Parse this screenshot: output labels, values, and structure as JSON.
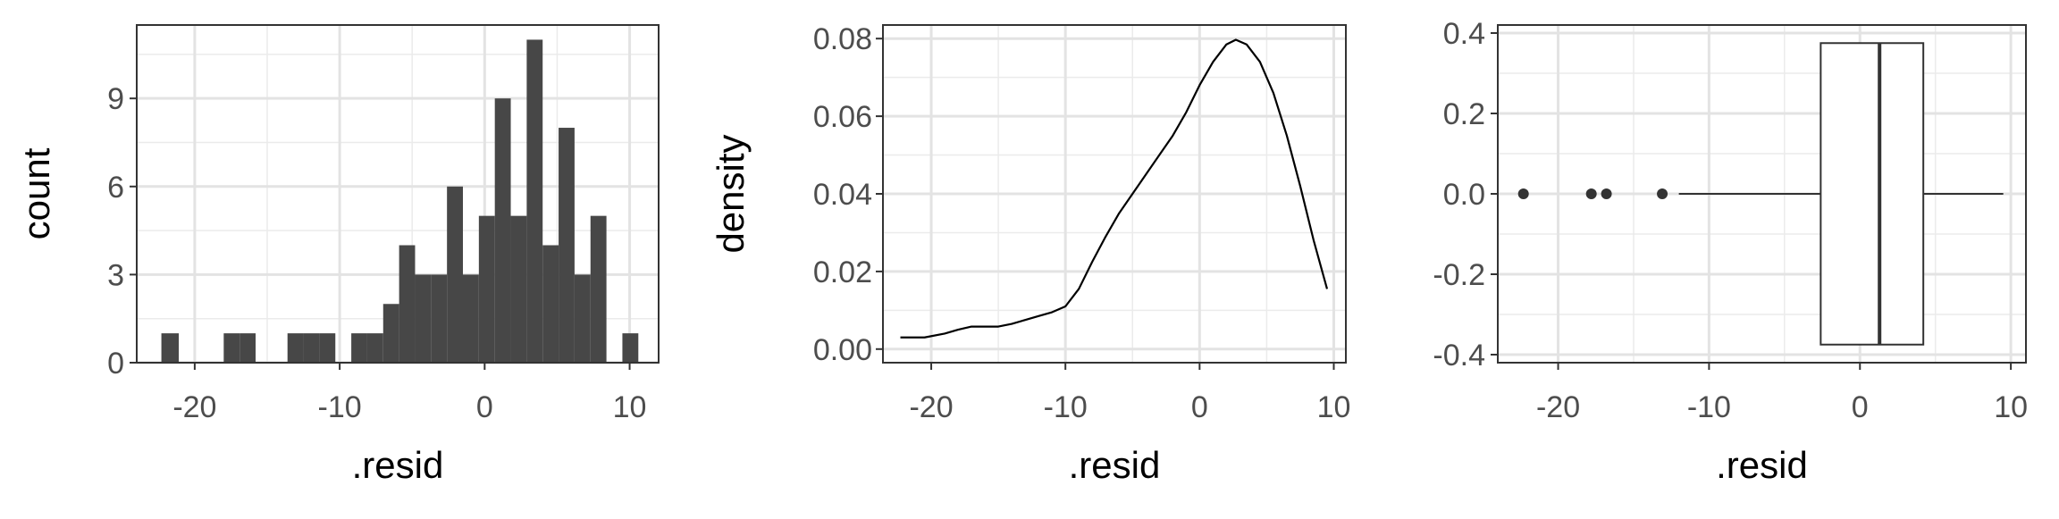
{
  "chart_data": [
    {
      "type": "histogram",
      "xlabel": ".resid",
      "ylabel": "count",
      "xlim": [
        -24,
        12
      ],
      "ylim": [
        0,
        11.5
      ],
      "x_ticks": [
        -20,
        -10,
        0,
        10
      ],
      "x_tick_labels": [
        "-20",
        "-10",
        "0",
        "10"
      ],
      "y_ticks": [
        0,
        3,
        6,
        9
      ],
      "y_tick_labels": [
        "0",
        "3",
        "6",
        "9"
      ],
      "grid": true,
      "bar_color": "#474747",
      "bins": [
        {
          "x0": -22.3,
          "x1": -21.1,
          "count": 1
        },
        {
          "x0": -18.0,
          "x1": -16.9,
          "count": 1
        },
        {
          "x0": -16.9,
          "x1": -15.8,
          "count": 1
        },
        {
          "x0": -13.6,
          "x1": -12.5,
          "count": 1
        },
        {
          "x0": -12.5,
          "x1": -11.4,
          "count": 1
        },
        {
          "x0": -11.4,
          "x1": -10.3,
          "count": 1
        },
        {
          "x0": -9.2,
          "x1": -8.1,
          "count": 1
        },
        {
          "x0": -8.1,
          "x1": -7.0,
          "count": 1
        },
        {
          "x0": -7.0,
          "x1": -5.9,
          "count": 2
        },
        {
          "x0": -5.9,
          "x1": -4.8,
          "count": 4
        },
        {
          "x0": -4.8,
          "x1": -3.7,
          "count": 3
        },
        {
          "x0": -3.7,
          "x1": -2.6,
          "count": 3
        },
        {
          "x0": -2.6,
          "x1": -1.5,
          "count": 6
        },
        {
          "x0": -1.5,
          "x1": -0.4,
          "count": 3
        },
        {
          "x0": -0.4,
          "x1": 0.7,
          "count": 5
        },
        {
          "x0": 0.7,
          "x1": 1.8,
          "count": 9
        },
        {
          "x0": 1.8,
          "x1": 2.9,
          "count": 5
        },
        {
          "x0": 2.9,
          "x1": 4.0,
          "count": 11
        },
        {
          "x0": 4.0,
          "x1": 5.1,
          "count": 4
        },
        {
          "x0": 5.1,
          "x1": 6.2,
          "count": 8
        },
        {
          "x0": 6.2,
          "x1": 7.3,
          "count": 3
        },
        {
          "x0": 7.3,
          "x1": 8.4,
          "count": 5
        },
        {
          "x0": 9.5,
          "x1": 10.6,
          "count": 1
        }
      ]
    },
    {
      "type": "line",
      "subtype": "density",
      "xlabel": ".resid",
      "ylabel": "density",
      "xlim": [
        -23.6,
        10.9
      ],
      "ylim": [
        -0.0035,
        0.0835
      ],
      "x_ticks": [
        -20,
        -10,
        0,
        10
      ],
      "x_tick_labels": [
        "-20",
        "-10",
        "0",
        "10"
      ],
      "y_ticks": [
        0,
        0.02,
        0.04,
        0.06,
        0.08
      ],
      "y_tick_labels": [
        "0.00",
        "0.02",
        "0.04",
        "0.06",
        "0.08"
      ],
      "grid": true,
      "line_color": "#000000",
      "x": [
        -22.3,
        -20.5,
        -19.0,
        -18.0,
        -17.0,
        -16.0,
        -15.0,
        -14.0,
        -13.0,
        -12.0,
        -11.0,
        -10.0,
        -9.0,
        -8.0,
        -7.0,
        -6.0,
        -5.0,
        -4.0,
        -3.0,
        -2.0,
        -1.0,
        0.0,
        1.0,
        2.0,
        2.7,
        3.5,
        4.5,
        5.5,
        6.5,
        7.5,
        8.5,
        9.5
      ],
      "y": [
        0.003,
        0.003,
        0.004,
        0.005,
        0.0058,
        0.0058,
        0.0058,
        0.0065,
        0.0075,
        0.0085,
        0.0095,
        0.011,
        0.0155,
        0.0225,
        0.029,
        0.035,
        0.04,
        0.045,
        0.05,
        0.055,
        0.061,
        0.068,
        0.074,
        0.0785,
        0.0797,
        0.0785,
        0.074,
        0.066,
        0.055,
        0.042,
        0.028,
        0.0155
      ]
    },
    {
      "type": "boxplot",
      "xlabel": ".resid",
      "ylabel": "",
      "xlim": [
        -24,
        11
      ],
      "ylim": [
        -0.42,
        0.42
      ],
      "x_ticks": [
        -20,
        -10,
        0,
        10
      ],
      "x_tick_labels": [
        "-20",
        "-10",
        "0",
        "10"
      ],
      "y_ticks": [
        -0.4,
        -0.2,
        0,
        0.2,
        0.4
      ],
      "y_tick_labels": [
        "-0.4",
        "-0.2",
        "0.0",
        "0.2",
        "0.4"
      ],
      "grid": true,
      "box": {
        "q1": -2.6,
        "median": 1.3,
        "q3": 4.2,
        "whisker_low": -12.0,
        "whisker_high": 9.5,
        "half_width": 0.375
      },
      "outliers": [
        -22.3,
        -17.8,
        -16.8,
        -13.1
      ]
    }
  ]
}
